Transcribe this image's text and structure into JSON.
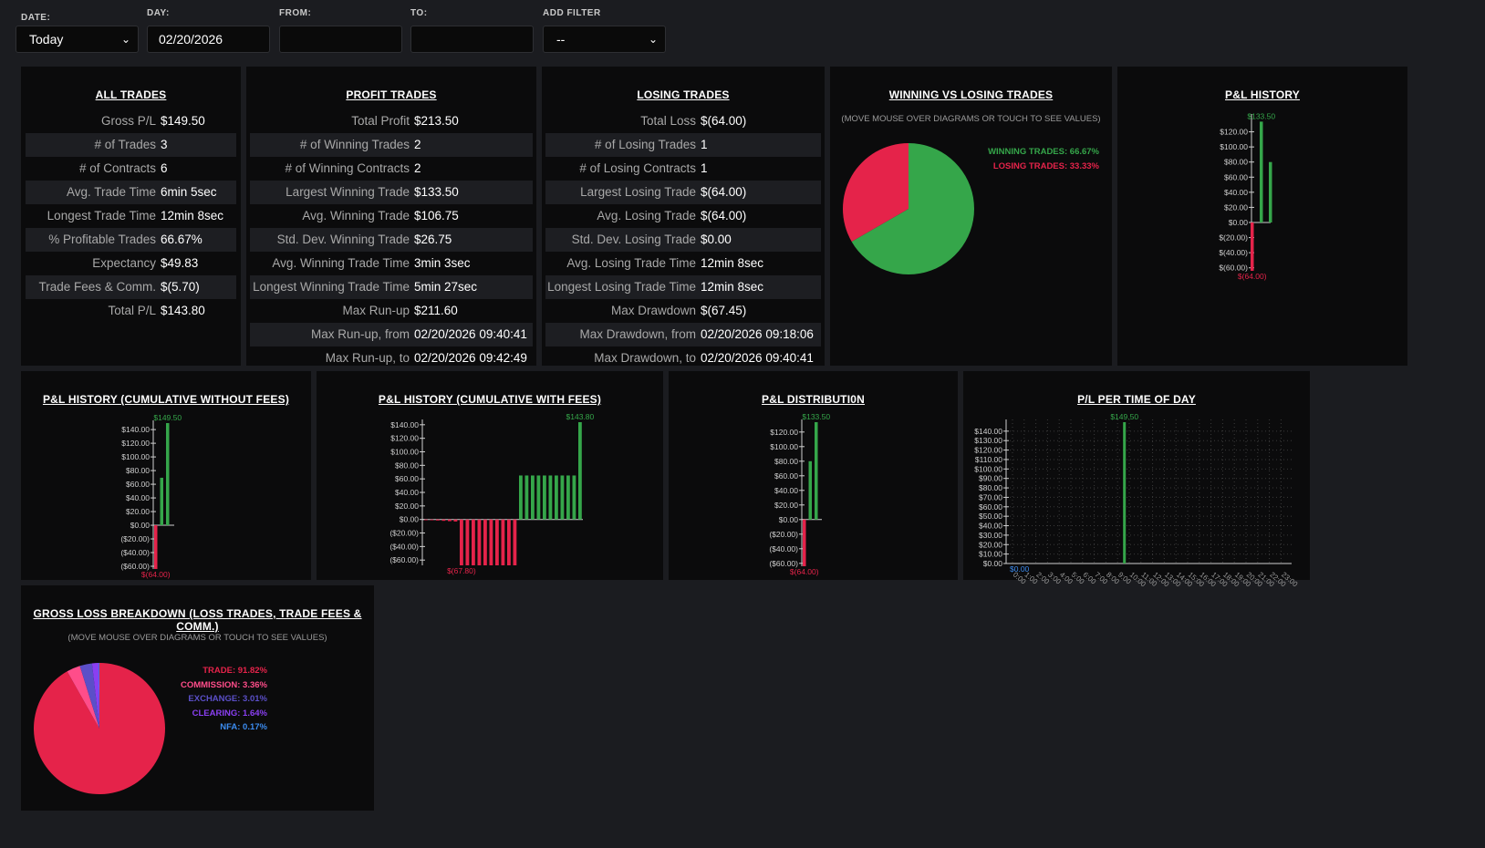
{
  "filters": {
    "date": {
      "label": "DATE:",
      "value": "Today"
    },
    "day": {
      "label": "DAY:",
      "value": "02/20/2026"
    },
    "from": {
      "label": "FROM:",
      "value": ""
    },
    "to": {
      "label": "TO:",
      "value": ""
    },
    "add_filter": {
      "label": "ADD FILTER",
      "value": "--"
    }
  },
  "all_trades": {
    "title": "ALL TRADES",
    "rows": [
      {
        "k": "Gross P/L",
        "v": "$149.50"
      },
      {
        "k": "# of Trades",
        "v": "3"
      },
      {
        "k": "# of Contracts",
        "v": "6"
      },
      {
        "k": "Avg. Trade Time",
        "v": "6min 5sec"
      },
      {
        "k": "Longest Trade Time",
        "v": "12min 8sec"
      },
      {
        "k": "% Profitable Trades",
        "v": "66.67%"
      },
      {
        "k": "Expectancy",
        "v": "$49.83"
      },
      {
        "k": "Trade Fees & Comm.",
        "v": "$(5.70)"
      },
      {
        "k": "Total P/L",
        "v": "$143.80"
      }
    ]
  },
  "profit_trades": {
    "title": "PROFIT TRADES",
    "rows": [
      {
        "k": "Total Profit",
        "v": "$213.50"
      },
      {
        "k": "# of Winning Trades",
        "v": "2"
      },
      {
        "k": "# of Winning Contracts",
        "v": "2"
      },
      {
        "k": "Largest Winning Trade",
        "v": "$133.50"
      },
      {
        "k": "Avg. Winning Trade",
        "v": "$106.75"
      },
      {
        "k": "Std. Dev. Winning Trade",
        "v": "$26.75"
      },
      {
        "k": "Avg. Winning Trade Time",
        "v": "3min 3sec"
      },
      {
        "k": "Longest Winning Trade Time",
        "v": "5min 27sec"
      },
      {
        "k": "Max Run-up",
        "v": "$211.60"
      },
      {
        "k": "Max Run-up, from",
        "v": "02/20/2026 09:40:41"
      },
      {
        "k": "Max Run-up, to",
        "v": "02/20/2026 09:42:49"
      }
    ]
  },
  "losing_trades": {
    "title": "LOSING TRADES",
    "rows": [
      {
        "k": "Total Loss",
        "v": "$(64.00)"
      },
      {
        "k": "# of Losing Trades",
        "v": "1"
      },
      {
        "k": "# of Losing Contracts",
        "v": "1"
      },
      {
        "k": "Largest Losing Trade",
        "v": "$(64.00)"
      },
      {
        "k": "Avg. Losing Trade",
        "v": "$(64.00)"
      },
      {
        "k": "Std. Dev. Losing Trade",
        "v": "$0.00"
      },
      {
        "k": "Avg. Losing Trade Time",
        "v": "12min 8sec"
      },
      {
        "k": "Longest Losing Trade Time",
        "v": "12min 8sec"
      },
      {
        "k": "Max Drawdown",
        "v": "$(67.45)"
      },
      {
        "k": "Max Drawdown, from",
        "v": "02/20/2026 09:18:06"
      },
      {
        "k": "Max Drawdown, to",
        "v": "02/20/2026 09:40:41"
      }
    ]
  },
  "win_vs_loss": {
    "title": "WINNING VS LOSING TRADES",
    "subtitle": "(MOVE MOUSE OVER DIAGRAMS OR TOUCH TO SEE VALUES)"
  },
  "gross_loss": {
    "title": "GROSS LOSS BREAKDOWN (LOSS TRADES, TRADE FEES & COMM.)",
    "subtitle": "(MOVE MOUSE OVER DIAGRAMS OR TOUCH TO SEE VALUES)"
  },
  "colors": {
    "green": "#35a64a",
    "red": "#e5234a",
    "pink": "#ff4d8a",
    "indigo": "#5b4fc8",
    "violet": "#8a3ff2",
    "blue": "#3c8cf0",
    "axis": "#cfcfcf"
  },
  "chart_data": [
    {
      "id": "win_loss_pie",
      "type": "pie",
      "title": "WINNING VS LOSING TRADES",
      "slices": [
        {
          "label": "WINNING TRADES: 66.67%",
          "value": 66.67,
          "color": "#35a64a"
        },
        {
          "label": "LOSING TRADES: 33.33%",
          "value": 33.33,
          "color": "#e5234a"
        }
      ]
    },
    {
      "id": "pl_history",
      "type": "bar",
      "title": "P&L HISTORY",
      "ylim": [
        -64,
        140
      ],
      "yticks": [
        -60,
        -40,
        -20,
        0,
        20,
        40,
        60,
        80,
        100,
        120
      ],
      "ytick_labels": [
        "$(60.00)",
        "$(40.00)",
        "$(20.00)",
        "$0.00",
        "$20.00",
        "$40.00",
        "$60.00",
        "$80.00",
        "$100.00",
        "$120.00"
      ],
      "values": [
        -64,
        133.5,
        80
      ],
      "max_label": "$133.50",
      "min_label": "$(64.00)"
    },
    {
      "id": "pl_cum_no_fees",
      "type": "bar",
      "title": "P&L HISTORY (CUMULATIVE WITHOUT FEES)",
      "ylim": [
        -64,
        149.5
      ],
      "yticks": [
        -60,
        -40,
        -20,
        0,
        20,
        40,
        60,
        80,
        100,
        120,
        140
      ],
      "ytick_labels": [
        "($60.00)",
        "($40.00)",
        "($20.00)",
        "$0.00",
        "$20.00",
        "$40.00",
        "$60.00",
        "$80.00",
        "$100.00",
        "$120.00",
        "$140.00"
      ],
      "values": [
        -64,
        69.5,
        149.5
      ],
      "max_label": "$149.50",
      "min_label": "$(64.00)"
    },
    {
      "id": "pl_cum_with_fees",
      "type": "bar",
      "title": "P&L HISTORY (CUMULATIVE WITH FEES)",
      "ylim": [
        -67.8,
        143.8
      ],
      "yticks": [
        -60,
        -40,
        -20,
        0,
        20,
        40,
        60,
        80,
        100,
        120,
        140
      ],
      "ytick_labels": [
        "($60.00)",
        "($40.00)",
        "($20.00)",
        "$0.00",
        "$20.00",
        "$40.00",
        "$60.00",
        "$80.00",
        "$100.00",
        "$120.00",
        "$140.00"
      ],
      "values": [
        -0.5,
        -1.0,
        -1.5,
        -2.0,
        -2.5,
        -3.0,
        -67.8,
        -67.8,
        -67.8,
        -67.8,
        -67.8,
        -67.8,
        -67.8,
        -67.8,
        -67.8,
        -67.8,
        65,
        65,
        65,
        65,
        65,
        65,
        65,
        65,
        65,
        65,
        143.8
      ],
      "max_label": "$143.80",
      "min_label": "$(67.80)"
    },
    {
      "id": "pl_distribution",
      "type": "bar",
      "title": "P&L DISTRIBUTI0N",
      "ylim": [
        -64,
        133.5
      ],
      "yticks": [
        -60,
        -40,
        -20,
        0,
        20,
        40,
        60,
        80,
        100,
        120
      ],
      "ytick_labels": [
        "($60.00)",
        "($40.00)",
        "($20.00)",
        "$0.00",
        "$20.00",
        "$40.00",
        "$60.00",
        "$80.00",
        "$100.00",
        "$120.00"
      ],
      "values": [
        -64,
        80,
        133.5
      ],
      "max_label": "$133.50",
      "min_label": "$(64.00)"
    },
    {
      "id": "pl_time_of_day",
      "type": "bar",
      "title": "P/L PER TIME OF DAY",
      "ylim": [
        0,
        149.5
      ],
      "yticks": [
        0,
        10,
        20,
        30,
        40,
        50,
        60,
        70,
        80,
        90,
        100,
        110,
        120,
        130,
        140
      ],
      "ytick_labels": [
        "$0.00",
        "$10.00",
        "$20.00",
        "$30.00",
        "$40.00",
        "$50.00",
        "$60.00",
        "$70.00",
        "$80.00",
        "$90.00",
        "$100.00",
        "$110.00",
        "$120.00",
        "$130.00",
        "$140.00"
      ],
      "categories": [
        "0:00",
        "1:00",
        "2:00",
        "3:00",
        "4:00",
        "5:00",
        "6:00",
        "7:00",
        "8:00",
        "9:00",
        "10:00",
        "11:00",
        "12:00",
        "13:00",
        "14:00",
        "15:00",
        "16:00",
        "17:00",
        "18:00",
        "19:00",
        "20:00",
        "21:00",
        "22:00",
        "23:00"
      ],
      "values": [
        0,
        0,
        0,
        0,
        0,
        0,
        0,
        0,
        0,
        149.5,
        0,
        0,
        0,
        0,
        0,
        0,
        0,
        0,
        0,
        0,
        0,
        0,
        0,
        0
      ],
      "max_label": "$149.50",
      "min_label": "$0.00"
    },
    {
      "id": "gross_loss_pie",
      "type": "pie",
      "title": "GROSS LOSS BREAKDOWN (LOSS TRADES, TRADE FEES & COMM.)",
      "slices": [
        {
          "label": "TRADE: 91.82%",
          "value": 91.82,
          "color": "#e5234a"
        },
        {
          "label": "COMMISSION: 3.36%",
          "value": 3.36,
          "color": "#ff4d8a"
        },
        {
          "label": "EXCHANGE: 3.01%",
          "value": 3.01,
          "color": "#5b4fc8"
        },
        {
          "label": "CLEARING: 1.64%",
          "value": 1.64,
          "color": "#8a3ff2"
        },
        {
          "label": "NFA: 0.17%",
          "value": 0.17,
          "color": "#3c8cf0"
        }
      ]
    }
  ]
}
